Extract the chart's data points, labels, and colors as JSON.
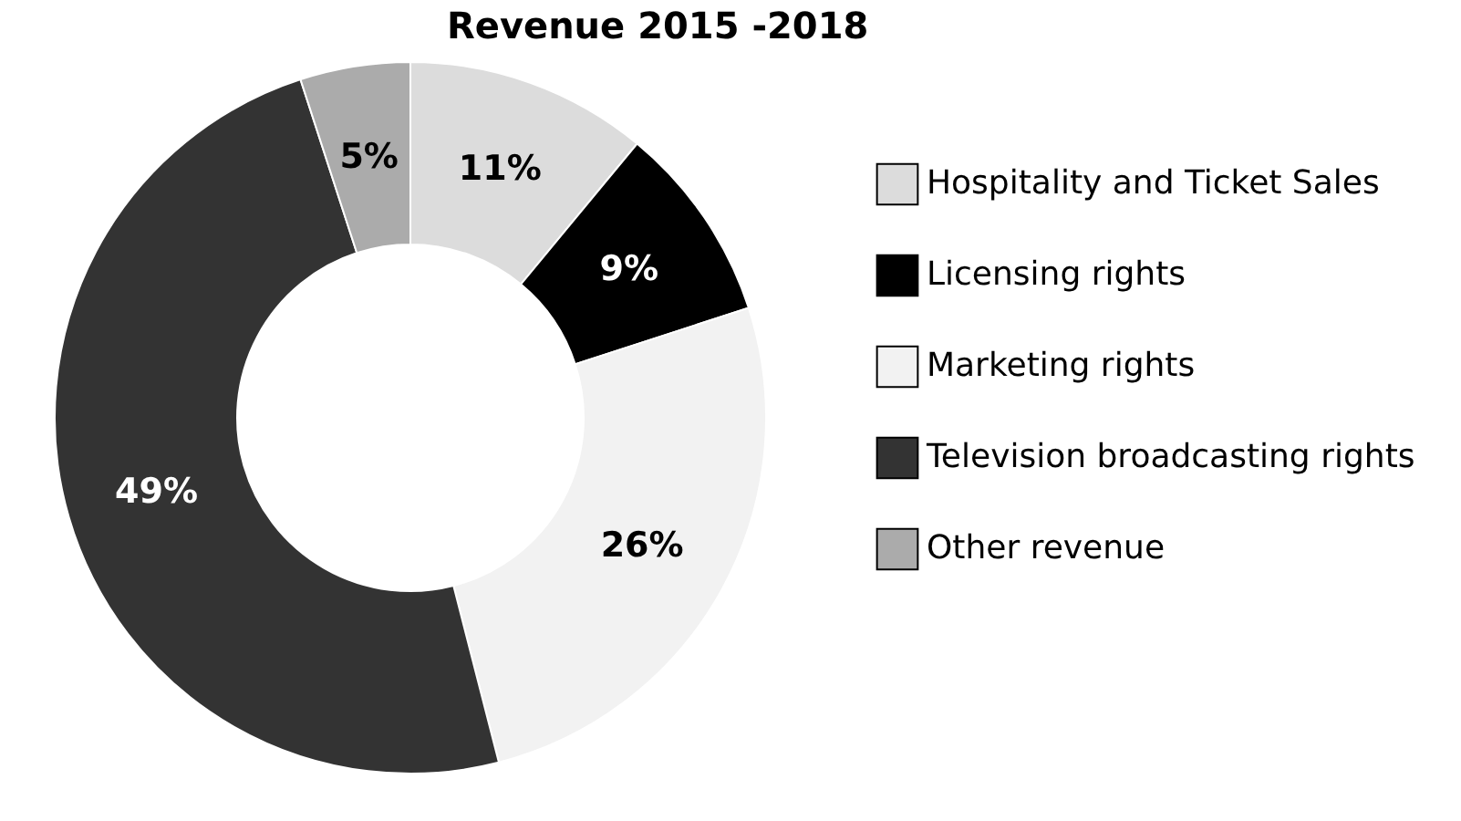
{
  "chart_data": {
    "type": "donut",
    "title": "Revenue 2015 -2018",
    "categories": [
      "Hospitality and Ticket Sales",
      "Licensing rights",
      "Marketing rights",
      "Television broadcasting rights",
      "Other revenue"
    ],
    "values": [
      11,
      9,
      26,
      49,
      5
    ],
    "value_labels": [
      "11%",
      "9%",
      "26%",
      "49%",
      "5%"
    ],
    "colors": [
      "#dcdcdc",
      "#000000",
      "#f2f2f2",
      "#333333",
      "#ababab"
    ],
    "legend": "right"
  }
}
